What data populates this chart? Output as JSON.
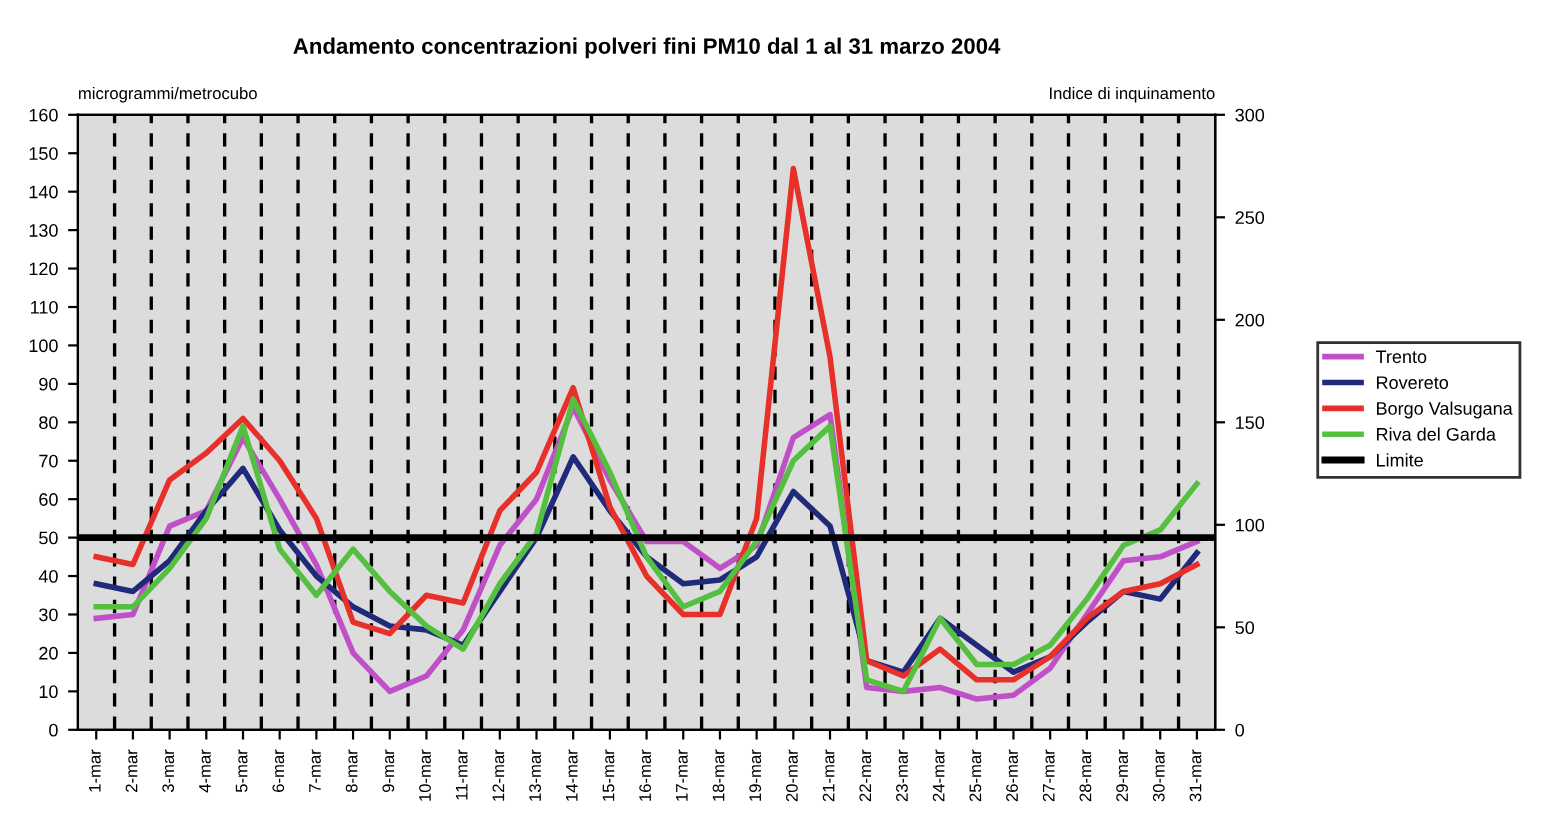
{
  "chart_data": {
    "type": "line",
    "title": "Andamento concentrazioni polveri fini PM10 dal 1 al 31 marzo 2004",
    "ylabel": "microgrammi/metrocubo",
    "y2label": "Indice di inquinamento",
    "categories": [
      "1-mar",
      "2-mar",
      "3-mar",
      "4-mar",
      "5-mar",
      "6-mar",
      "7-mar",
      "8-mar",
      "9-mar",
      "10-mar",
      "11-mar",
      "12-mar",
      "13-mar",
      "14-mar",
      "15-mar",
      "16-mar",
      "17-mar",
      "18-mar",
      "19-mar",
      "20-mar",
      "21-mar",
      "22-mar",
      "23-mar",
      "24-mar",
      "25-mar",
      "26-mar",
      "27-mar",
      "28-mar",
      "29-mar",
      "30-mar",
      "31-mar"
    ],
    "series": [
      {
        "name": "Trento",
        "color": "#c050c8",
        "values": [
          29,
          30,
          53,
          57,
          76,
          60,
          43,
          20,
          10,
          14,
          26,
          48,
          60,
          84,
          65,
          49,
          49,
          42,
          48,
          76,
          82,
          11,
          10,
          11,
          8,
          9,
          16,
          30,
          44,
          45,
          49
        ]
      },
      {
        "name": "Rovereto",
        "color": "#1f2a7a",
        "values": [
          38,
          36,
          44,
          57,
          68,
          52,
          40,
          32,
          27,
          26,
          22,
          36,
          50,
          71,
          57,
          45,
          38,
          39,
          45,
          62,
          53,
          18,
          15,
          29,
          22,
          15,
          19,
          28,
          36,
          34,
          46
        ]
      },
      {
        "name": "Borgo Valsugana",
        "color": "#e8302a",
        "values": [
          45,
          43,
          65,
          72,
          81,
          70,
          55,
          28,
          25,
          35,
          33,
          57,
          67,
          89,
          58,
          40,
          30,
          30,
          55,
          146,
          97,
          18,
          14,
          21,
          13,
          13,
          19,
          29,
          36,
          38,
          43
        ]
      },
      {
        "name": "Riva del Garda",
        "color": "#55c040",
        "values": [
          32,
          32,
          42,
          55,
          79,
          47,
          35,
          47,
          36,
          27,
          21,
          38,
          51,
          86,
          67,
          45,
          32,
          36,
          49,
          70,
          79,
          13,
          10,
          29,
          17,
          17,
          22,
          34,
          48,
          52,
          64
        ]
      }
    ],
    "ref_lines": [
      {
        "axis": "y",
        "value": 50,
        "label": "Limite",
        "color": "#000000"
      }
    ],
    "ylim": [
      0,
      160
    ],
    "yticks": [
      0,
      10,
      20,
      30,
      40,
      50,
      60,
      70,
      80,
      90,
      100,
      110,
      120,
      130,
      140,
      150,
      160
    ],
    "y2lim": [
      0,
      300
    ],
    "y2ticks": [
      0,
      50,
      100,
      150,
      200,
      250,
      300
    ],
    "grid": "x",
    "legend": "right",
    "line_style": "solid",
    "marker": "none"
  }
}
